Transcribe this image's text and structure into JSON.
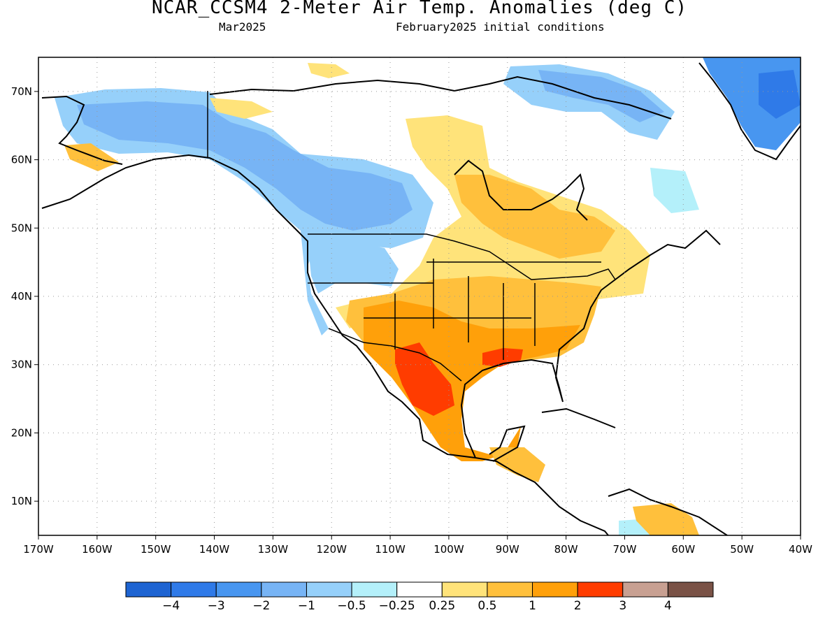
{
  "title": "NCAR_CCSM4 2-Meter Air Temp. Anomalies (deg C)",
  "subtitle_left": "Mar2025",
  "subtitle_right": "February2025 initial conditions",
  "map": {
    "lon_range": [
      -170,
      -40
    ],
    "lat_range": [
      5,
      75
    ],
    "lat_ticks": [
      "10N",
      "20N",
      "30N",
      "40N",
      "50N",
      "60N",
      "70N"
    ],
    "lon_ticks": [
      "170W",
      "160W",
      "150W",
      "140W",
      "130W",
      "120W",
      "110W",
      "100W",
      "90W",
      "80W",
      "70W",
      "60W",
      "50W",
      "40W"
    ],
    "gridlines": "dotted"
  },
  "colorbar": {
    "colors": [
      "#1e64d2",
      "#2f7ae8",
      "#4896f0",
      "#77b4f5",
      "#96d0fa",
      "#b4f0fa",
      "#ffffff",
      "#ffe37a",
      "#ffc03c",
      "#ffa00a",
      "#ff3c00",
      "#c8a092",
      "#7a5246"
    ],
    "labels": [
      "−4",
      "−3",
      "−2",
      "−1",
      "−0.5",
      "−0.25",
      "0.25",
      "0.5",
      "1",
      "2",
      "3",
      "4"
    ]
  }
}
